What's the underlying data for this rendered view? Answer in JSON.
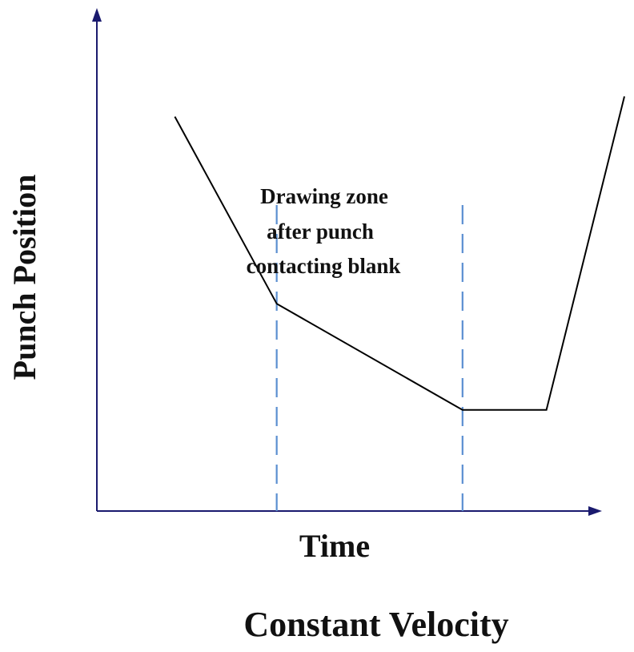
{
  "chart_data": {
    "type": "line",
    "title": "",
    "subtitle": "Constant Velocity",
    "xlabel": "Time",
    "ylabel": "Punch Position",
    "grid": false,
    "legend": null,
    "series": [
      {
        "color": "#000000",
        "x": [
          0.65,
          1.5,
          3.05,
          3.75,
          4.4
        ],
        "y": [
          3.9,
          2.05,
          1.0,
          1.0,
          4.1
        ]
      }
    ],
    "markers": [
      {
        "type": "vline",
        "x": 1.5,
        "style": "dashed",
        "color": "#5b8fd1"
      },
      {
        "type": "vline",
        "x": 3.05,
        "style": "dashed",
        "color": "#5b8fd1"
      }
    ],
    "annotation": {
      "lines": [
        "Drawing zone",
        "after punch",
        "contacting blank"
      ]
    },
    "xlim": [
      0,
      4.4
    ],
    "ylim": [
      0,
      4.8
    ],
    "axis_color": "#1a1a6e"
  }
}
